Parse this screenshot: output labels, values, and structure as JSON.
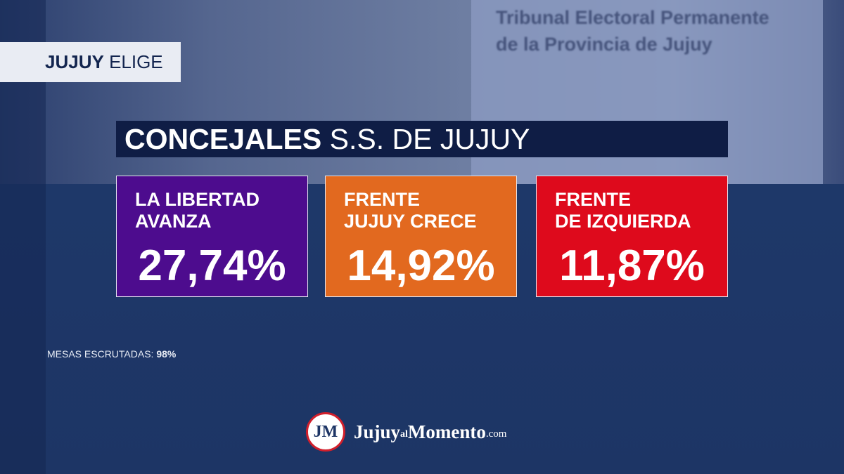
{
  "header": {
    "tag_bold": "JUJUY",
    "tag_rest": "ELIGE",
    "title_bold": "CONCEJALES",
    "title_rest": "S.S. DE JUJUY"
  },
  "background": {
    "sign_lines": [
      "Tribunal Electoral Permanente",
      "de la Provincia de Jujuy"
    ]
  },
  "results": [
    {
      "lines": [
        "LA LIBERTAD",
        "AVANZA"
      ],
      "percent": "27,74%",
      "color": "#4d0c8e"
    },
    {
      "lines": [
        "FRENTE",
        "JUJUY CRECE"
      ],
      "percent": "14,92%",
      "color": "#e2691f"
    },
    {
      "lines": [
        "FRENTE",
        "DE IZQUIERDA"
      ],
      "percent": "11,87%",
      "color": "#de0a1c"
    }
  ],
  "footer": {
    "mesas_label": "MESAS ESCRUTADAS:",
    "mesas_value": "98%",
    "logo": {
      "badge": "JM",
      "part1": "Jujuy",
      "part2": "al",
      "part3": "Momento",
      "part4": ".com"
    }
  }
}
